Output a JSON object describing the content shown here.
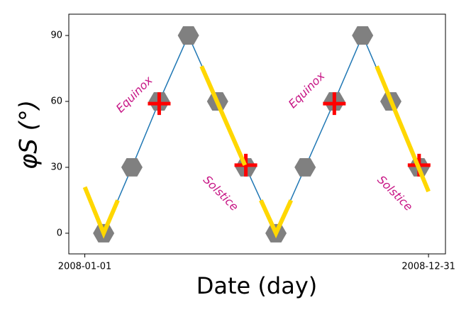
{
  "chart_data": {
    "type": "line",
    "xlabel": "Date (day)",
    "ylabel": "φS (°)",
    "xlim": [
      "2007-12-15",
      "2009-01-18"
    ],
    "xticks": [
      "2008-01-01",
      "2008-12-31"
    ],
    "ylim": [
      -9.4,
      99.7
    ],
    "yticks": [
      0,
      30,
      60,
      90
    ],
    "series": [
      {
        "color": "#1f77b4",
        "linestyle": "solid",
        "linewidth": 1.5,
        "marker": "none",
        "x": [
          "2008-01-21",
          "2008-02-20",
          "2008-03-20",
          "2008-04-20",
          "2008-05-21",
          "2008-06-20",
          "2008-07-22",
          "2008-08-22",
          "2008-09-22",
          "2008-10-22",
          "2008-11-21",
          "2008-12-21"
        ],
        "values": [
          0,
          30,
          60,
          90,
          60,
          30,
          0,
          30,
          60,
          90,
          60,
          30
        ]
      },
      {
        "color": "#808080",
        "linestyle": "none",
        "marker": "hexagon",
        "x": [
          "2008-01-21",
          "2008-02-20",
          "2008-03-20",
          "2008-04-20",
          "2008-05-21",
          "2008-06-20",
          "2008-07-22",
          "2008-08-22",
          "2008-09-22",
          "2008-10-22",
          "2008-11-21",
          "2008-12-21"
        ],
        "values": [
          0,
          30,
          60,
          90,
          60,
          30,
          0,
          30,
          60,
          90,
          60,
          30
        ]
      },
      {
        "color": "#ff0000",
        "linestyle": "none",
        "marker": "plus",
        "x": [
          "2008-03-20",
          "2008-06-20",
          "2008-09-22",
          "2008-12-21"
        ],
        "values": [
          59,
          31,
          59,
          31
        ]
      },
      {
        "color": "#ffd700",
        "linestyle": "solid",
        "linewidth": 6,
        "marker": "none",
        "x": [
          "2008-01-01",
          "2008-01-21",
          "2008-02-05"
        ],
        "values": [
          21,
          0,
          15
        ]
      },
      {
        "color": "#ffd700",
        "linestyle": "solid",
        "linewidth": 6,
        "marker": "none",
        "x": [
          "2008-05-04",
          "2008-06-19"
        ],
        "values": [
          76,
          31
        ]
      },
      {
        "color": "#ffd700",
        "linestyle": "solid",
        "linewidth": 6,
        "marker": "none",
        "x": [
          "2008-07-06",
          "2008-07-22",
          "2008-08-07"
        ],
        "values": [
          15,
          0,
          15
        ]
      },
      {
        "color": "#ffd700",
        "linestyle": "solid",
        "linewidth": 6,
        "marker": "none",
        "x": [
          "2008-11-06",
          "2008-12-31"
        ],
        "values": [
          76,
          19
        ]
      }
    ],
    "annotations": [
      {
        "text": "Equinox",
        "x": "2008-02-23",
        "y": 63,
        "color": "#c71585"
      },
      {
        "text": "Solstice",
        "x": "2008-05-24",
        "y": 18,
        "color": "#c71585"
      },
      {
        "text": "Equinox",
        "x": "2008-08-24",
        "y": 65,
        "color": "#c71585"
      },
      {
        "text": "Solstice",
        "x": "2008-11-25",
        "y": 18,
        "color": "#c71585"
      }
    ]
  }
}
